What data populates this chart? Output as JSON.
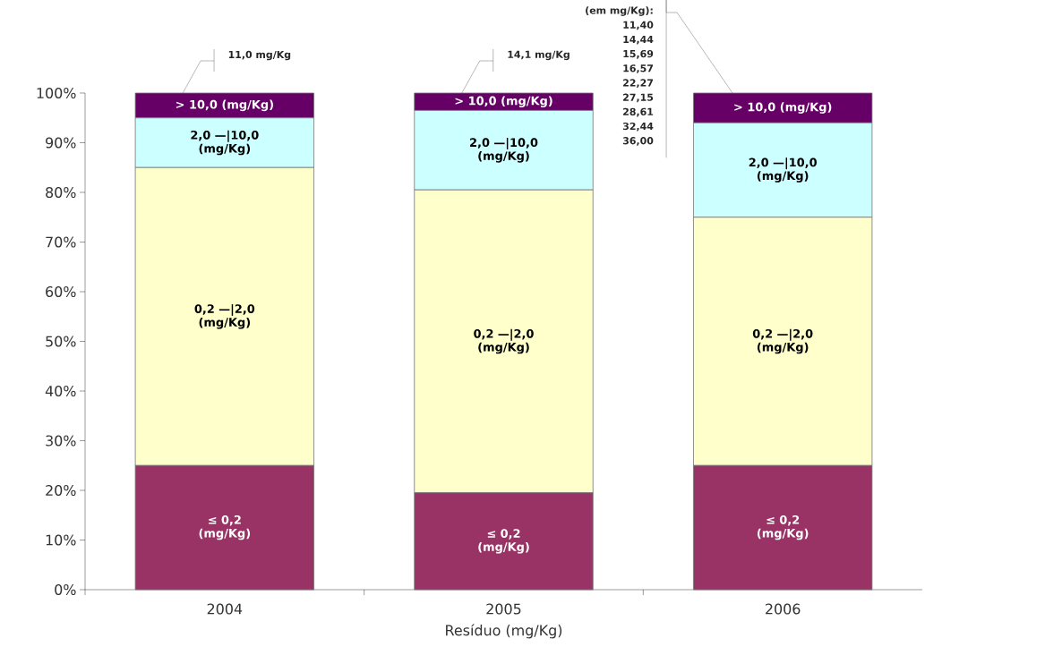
{
  "chart_data": {
    "type": "bar",
    "stacked": true,
    "xlabel": "Resíduo (mg/Kg)",
    "categories": [
      "2004",
      "2005",
      "2006"
    ],
    "series": [
      {
        "name": "≤ 0,2 (mg/Kg)",
        "color": "#993366",
        "values": [
          25,
          19.5,
          25
        ]
      },
      {
        "name": "0,2 —|2,0 (mg/Kg)",
        "color": "#ffffcc",
        "values": [
          60,
          61,
          50
        ]
      },
      {
        "name": "2,0 —|10,0 (mg/Kg)",
        "color": "#ccffff",
        "values": [
          10,
          16,
          19
        ]
      },
      {
        "name": "> 10,0 (mg/Kg)",
        "color": "#660066",
        "values": [
          5,
          3.5,
          6
        ]
      }
    ],
    "ylim": [
      0,
      100
    ],
    "yticks": [
      {
        "value": 0,
        "label": "0%"
      },
      {
        "value": 10,
        "label": "10%"
      },
      {
        "value": 20,
        "label": "20%"
      },
      {
        "value": 30,
        "label": "30%"
      },
      {
        "value": 40,
        "label": "40%"
      },
      {
        "value": 50,
        "label": "50%"
      },
      {
        "value": 60,
        "label": "60%"
      },
      {
        "value": 70,
        "label": "70%"
      },
      {
        "value": 80,
        "label": "80%"
      },
      {
        "value": 90,
        "label": "90%"
      },
      {
        "value": 100,
        "label": "100%"
      }
    ],
    "grid": false,
    "legend": false,
    "annotations": [
      "11,0 mg/Kg",
      "14,1 mg/Kg",
      "(em mg/Kg):",
      "11,40",
      "14,44",
      "15,69",
      "16,57",
      "22,27",
      "27,15",
      "28,61",
      "32,44",
      "36,00"
    ]
  }
}
